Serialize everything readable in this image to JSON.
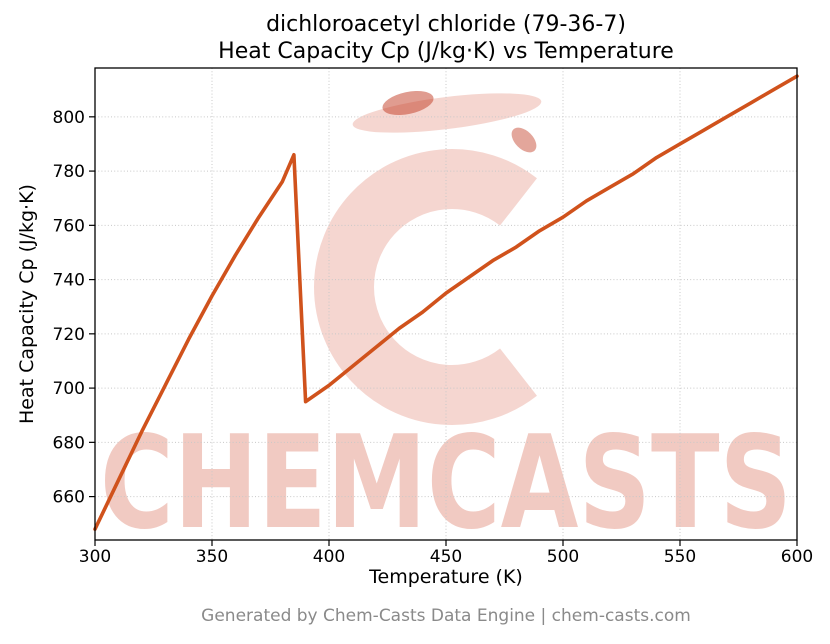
{
  "page": {
    "footer": "Generated by Chem-Casts Data Engine | chem-casts.com"
  },
  "chart_data": {
    "type": "line",
    "title_line1": "dichloroacetyl chloride (79-36-7)",
    "title_line2": "Heat Capacity Cp (J/kg·K) vs Temperature",
    "xlabel": "Temperature (K)",
    "ylabel": "Heat Capacity Cp (J/kg·K)",
    "xlim": [
      300,
      600
    ],
    "ylim": [
      644,
      818
    ],
    "xticks": [
      300,
      350,
      400,
      450,
      500,
      550,
      600
    ],
    "yticks": [
      660,
      680,
      700,
      720,
      740,
      760,
      780,
      800
    ],
    "grid": true,
    "legend": false,
    "line_color": "#d0521c",
    "grid_color": "#c8c8c8",
    "watermark": {
      "text": "CHEMCASTS",
      "color": "#d4543a",
      "text_opacity": 0.3,
      "logo_opacity": 0.24,
      "speckle_color": "#c13a22"
    },
    "series": [
      {
        "name": "Heat Capacity Cp",
        "x": [
          300,
          310,
          320,
          330,
          340,
          350,
          360,
          370,
          380,
          385,
          390,
          400,
          410,
          420,
          430,
          440,
          450,
          460,
          470,
          480,
          490,
          500,
          510,
          520,
          530,
          540,
          550,
          560,
          570,
          580,
          590,
          600
        ],
        "y": [
          648,
          666,
          684,
          701,
          718,
          734,
          749,
          763,
          776,
          786,
          695,
          701,
          708,
          715,
          722,
          728,
          735,
          741,
          747,
          752,
          758,
          763,
          769,
          774,
          779,
          785,
          790,
          795,
          800,
          805,
          810,
          815
        ]
      }
    ]
  }
}
